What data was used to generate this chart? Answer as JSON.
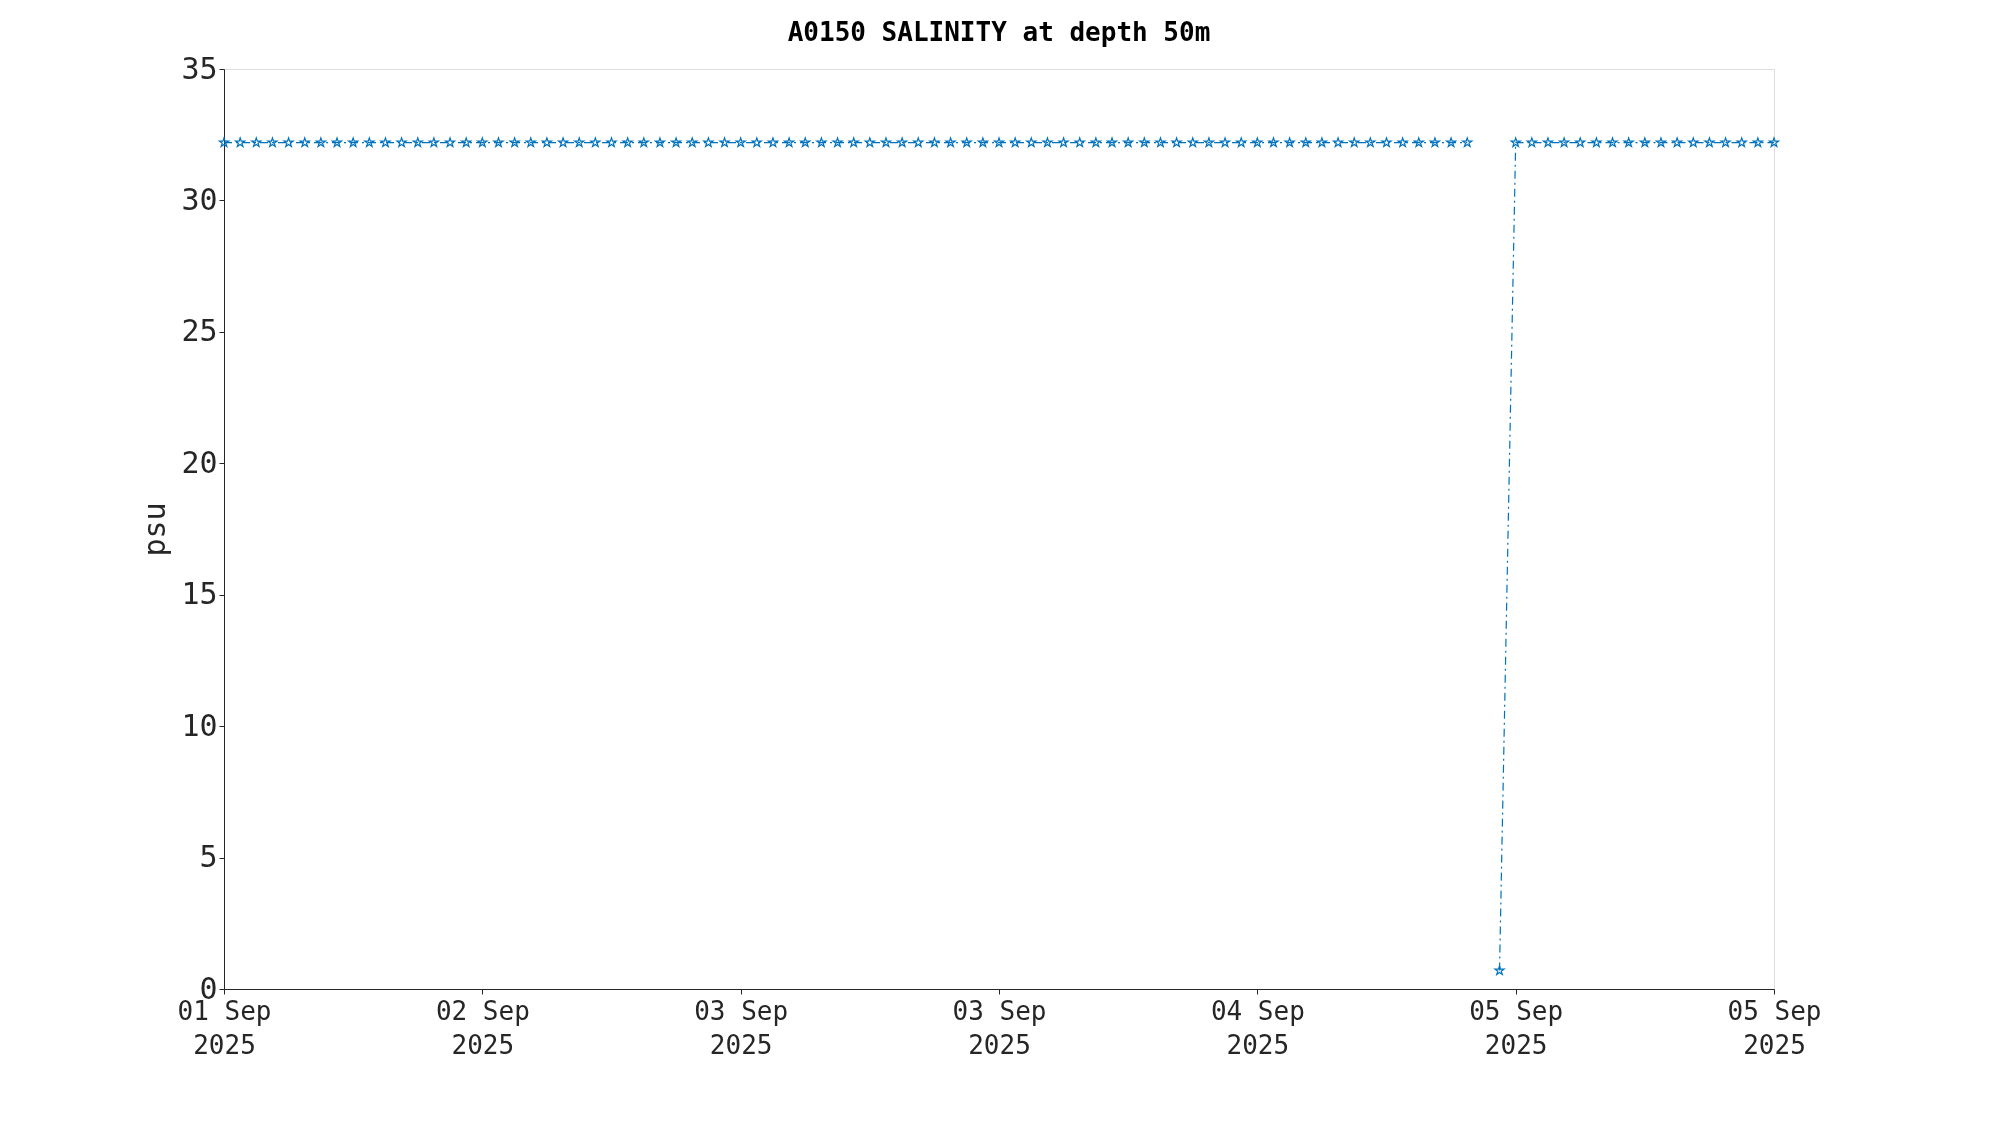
{
  "chart_data": {
    "type": "line",
    "title": "A0150 SALINITY at depth 50m",
    "ylabel": "psu",
    "x": [
      "2025-09-01T16:00",
      "2025-09-01T17:00",
      "2025-09-01T18:00",
      "2025-09-01T19:00",
      "2025-09-01T20:00",
      "2025-09-01T21:00",
      "2025-09-01T22:00",
      "2025-09-01T23:00",
      "2025-09-02T00:00",
      "2025-09-02T01:00",
      "2025-09-02T02:00",
      "2025-09-02T03:00",
      "2025-09-02T04:00",
      "2025-09-02T05:00",
      "2025-09-02T06:00",
      "2025-09-02T07:00",
      "2025-09-02T08:00",
      "2025-09-02T09:00",
      "2025-09-02T10:00",
      "2025-09-02T11:00",
      "2025-09-02T12:00",
      "2025-09-02T13:00",
      "2025-09-02T14:00",
      "2025-09-02T15:00",
      "2025-09-02T16:00",
      "2025-09-02T17:00",
      "2025-09-02T18:00",
      "2025-09-02T19:00",
      "2025-09-02T20:00",
      "2025-09-02T21:00",
      "2025-09-02T22:00",
      "2025-09-02T23:00",
      "2025-09-03T00:00",
      "2025-09-03T01:00",
      "2025-09-03T02:00",
      "2025-09-03T03:00",
      "2025-09-03T04:00",
      "2025-09-03T05:00",
      "2025-09-03T06:00",
      "2025-09-03T07:00",
      "2025-09-03T08:00",
      "2025-09-03T09:00",
      "2025-09-03T10:00",
      "2025-09-03T11:00",
      "2025-09-03T12:00",
      "2025-09-03T13:00",
      "2025-09-03T14:00",
      "2025-09-03T15:00",
      "2025-09-03T16:00",
      "2025-09-03T17:00",
      "2025-09-03T18:00",
      "2025-09-03T19:00",
      "2025-09-03T20:00",
      "2025-09-03T21:00",
      "2025-09-03T22:00",
      "2025-09-03T23:00",
      "2025-09-04T00:00",
      "2025-09-04T01:00",
      "2025-09-04T02:00",
      "2025-09-04T03:00",
      "2025-09-04T04:00",
      "2025-09-04T05:00",
      "2025-09-04T06:00",
      "2025-09-04T07:00",
      "2025-09-04T08:00",
      "2025-09-04T09:00",
      "2025-09-04T10:00",
      "2025-09-04T11:00",
      "2025-09-04T12:00",
      "2025-09-04T13:00",
      "2025-09-04T14:00",
      "2025-09-04T15:00",
      "2025-09-04T16:00",
      "2025-09-04T17:00",
      "2025-09-04T18:00",
      "2025-09-04T19:00",
      "2025-09-04T20:00",
      "2025-09-04T21:00",
      "2025-09-04T22:00",
      "2025-09-04T23:00",
      "2025-09-05T00:00",
      "2025-09-05T01:00",
      "2025-09-05T02:00",
      "2025-09-05T03:00",
      "2025-09-05T04:00",
      "2025-09-05T05:00",
      "2025-09-05T06:00",
      "2025-09-05T07:00",
      "2025-09-05T08:00",
      "2025-09-05T09:00",
      "2025-09-05T10:00",
      "2025-09-05T11:00",
      "2025-09-05T12:00",
      "2025-09-05T13:00",
      "2025-09-05T14:00",
      "2025-09-05T15:00",
      "2025-09-05T16:00"
    ],
    "series": [
      {
        "color": "#0072bd",
        "values": [
          32.2,
          32.2,
          32.2,
          32.2,
          32.2,
          32.2,
          32.2,
          32.2,
          32.2,
          32.2,
          32.2,
          32.2,
          32.2,
          32.2,
          32.2,
          32.2,
          32.2,
          32.2,
          32.2,
          32.2,
          32.2,
          32.2,
          32.2,
          32.2,
          32.2,
          32.2,
          32.2,
          32.2,
          32.2,
          32.2,
          32.2,
          32.2,
          32.2,
          32.2,
          32.2,
          32.2,
          32.2,
          32.2,
          32.2,
          32.2,
          32.2,
          32.2,
          32.2,
          32.2,
          32.2,
          32.2,
          32.2,
          32.2,
          32.2,
          32.2,
          32.2,
          32.2,
          32.2,
          32.2,
          32.2,
          32.2,
          32.2,
          32.2,
          32.2,
          32.2,
          32.2,
          32.2,
          32.2,
          32.2,
          32.2,
          32.2,
          32.2,
          32.2,
          32.2,
          32.2,
          32.2,
          32.2,
          32.2,
          32.2,
          32.2,
          32.2,
          32.2,
          32.2,
          null,
          0.7,
          32.2,
          32.2,
          32.2,
          32.2,
          32.2,
          32.2,
          32.2,
          32.2,
          32.2,
          32.2,
          32.2,
          32.2,
          32.2,
          32.2,
          32.2,
          32.2,
          32.2
        ]
      }
    ],
    "xlim": [
      "2025-09-01T16:00",
      "2025-09-05T16:00"
    ],
    "xticks": [
      {
        "value": "2025-09-01T16:00",
        "label": "01 Sep\n2025"
      },
      {
        "value": "2025-09-02T08:00",
        "label": "02 Sep\n2025"
      },
      {
        "value": "2025-09-03T00:00",
        "label": "03 Sep\n2025"
      },
      {
        "value": "2025-09-03T16:00",
        "label": "03 Sep\n2025"
      },
      {
        "value": "2025-09-04T08:00",
        "label": "04 Sep\n2025"
      },
      {
        "value": "2025-09-05T00:00",
        "label": "05 Sep\n2025"
      },
      {
        "value": "2025-09-05T16:00",
        "label": "05 Sep\n2025"
      }
    ],
    "ylim": [
      0,
      35
    ],
    "yticks": [
      0,
      5,
      10,
      15,
      20,
      25,
      30,
      35
    ],
    "grid": false,
    "marker": "star",
    "line_style": "dashed"
  }
}
